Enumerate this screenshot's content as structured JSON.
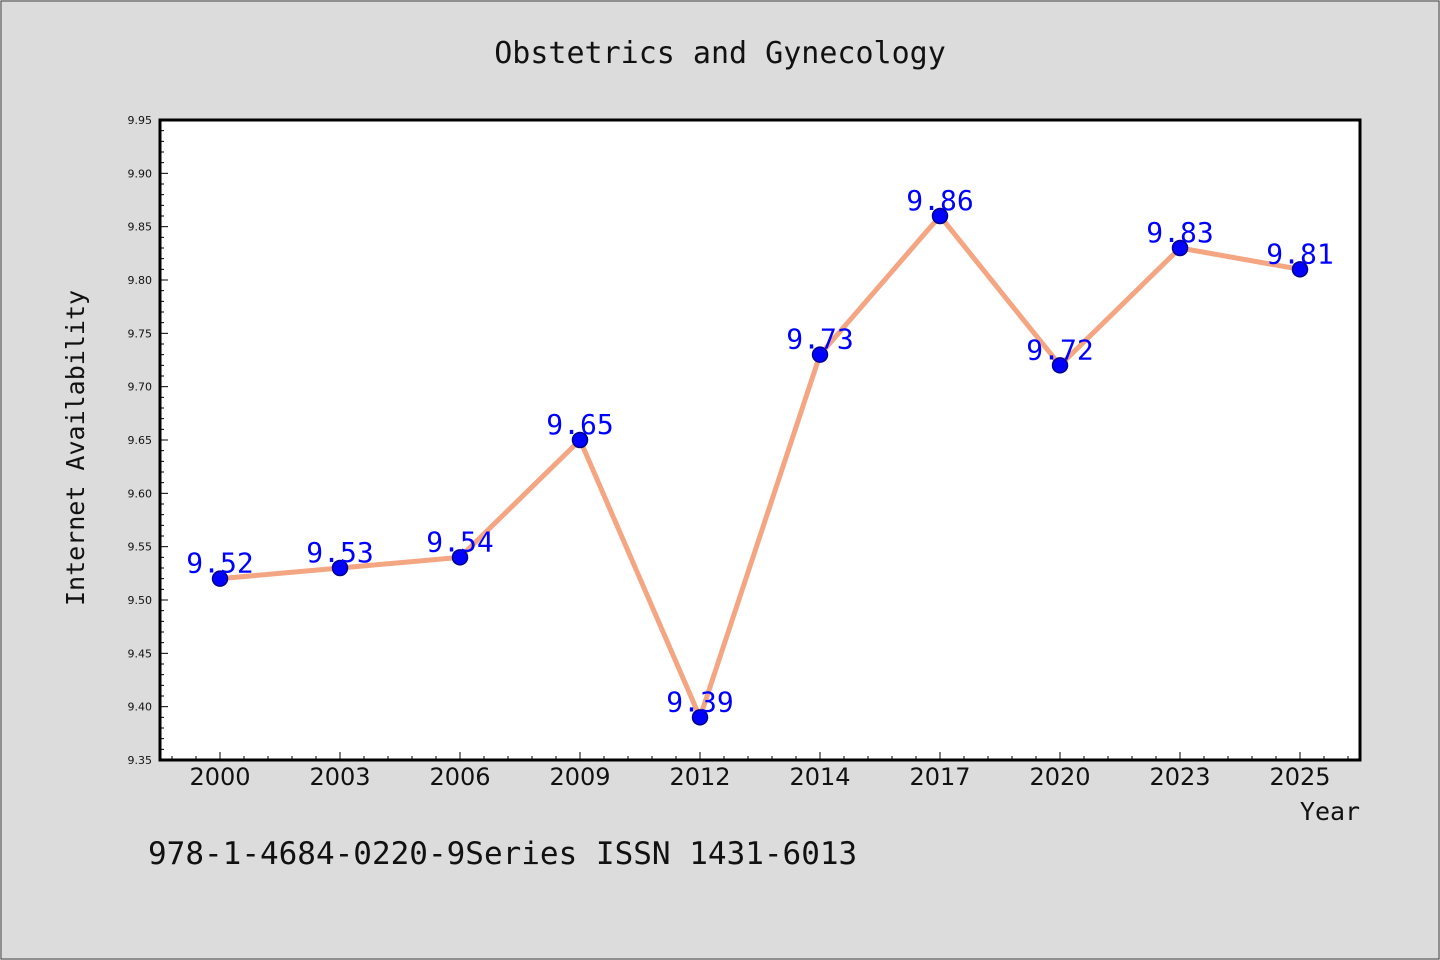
{
  "chart_data": {
    "type": "line",
    "title": "Obstetrics and Gynecology",
    "xlabel": "Year",
    "ylabel": "Internet Availability",
    "categories": [
      "2000",
      "2003",
      "2006",
      "2009",
      "2012",
      "2014",
      "2017",
      "2020",
      "2023",
      "2025"
    ],
    "series": [
      {
        "values": [
          9.52,
          9.53,
          9.54,
          9.65,
          9.39,
          9.73,
          9.86,
          9.72,
          9.83,
          9.81
        ]
      }
    ],
    "data_labels": [
      "9.52",
      "9.53",
      "9.54",
      "9.65",
      "9.39",
      "9.73",
      "9.86",
      "9.72",
      "9.83",
      "9.81"
    ],
    "ylim": [
      9.35,
      9.95
    ],
    "yticks": [
      "9.35",
      "9.40",
      "9.45",
      "9.50",
      "9.55",
      "9.60",
      "9.65",
      "9.70",
      "9.75",
      "9.80",
      "9.85",
      "9.90",
      "9.95"
    ],
    "grid": false,
    "legend": "none",
    "colors": {
      "line": "#f4a582",
      "marker": "#0000ff",
      "marker_edge": "#00008b",
      "label": "#0000ff",
      "background": "#dcdcdc",
      "plot_background": "#ffffff"
    }
  },
  "footer": {
    "text": "978-1-4684-0220-9Series ISSN 1431-6013"
  }
}
